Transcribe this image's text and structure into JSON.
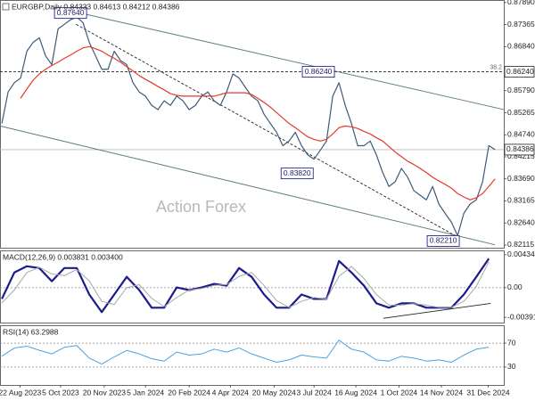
{
  "chart_data": [
    {
      "type": "line",
      "title": "EURGBP,Daily  0.84333 0.84613 0.84212 0.84386",
      "watermark": "Action Forex",
      "xlim": [
        -0.3,
        80.4
      ],
      "ylim": [
        0.8205,
        0.8795
      ],
      "yticks": [
        {
          "value": 0.8789,
          "label": "0.87890"
        },
        {
          "value": 0.87365,
          "label": "0.87365"
        },
        {
          "value": 0.8684,
          "label": "0.86840"
        },
        {
          "value": 0.8579,
          "label": "0.85790"
        },
        {
          "value": 0.85265,
          "label": "0.85265"
        },
        {
          "value": 0.8474,
          "label": "0.84740"
        },
        {
          "value": 0.84215,
          "label": "0.84215"
        },
        {
          "value": 0.8369,
          "label": "0.83690"
        },
        {
          "value": 0.83165,
          "label": "0.83165"
        },
        {
          "value": 0.8264,
          "label": "0.82640"
        },
        {
          "value": 0.82115,
          "label": "0.82115"
        }
      ],
      "series": [
        {
          "color": "#3d5a78",
          "values": [
            0.8501,
            0.8576,
            0.8598,
            0.8609,
            0.8673,
            0.8694,
            0.8705,
            0.8662,
            0.8641,
            0.8726,
            0.8737,
            0.8748,
            0.8754,
            0.8741,
            0.8694,
            0.8662,
            0.863,
            0.863,
            0.8673,
            0.8651,
            0.8641,
            0.8598,
            0.8576,
            0.8566,
            0.8544,
            0.8534,
            0.8555,
            0.8544,
            0.8566,
            0.8555,
            0.8534,
            0.8544,
            0.8566,
            0.8576,
            0.8555,
            0.8544,
            0.8576,
            0.8619,
            0.8609,
            0.8587,
            0.8566,
            0.8555,
            0.8523,
            0.8501,
            0.848,
            0.8448,
            0.8459,
            0.848,
            0.8448,
            0.8426,
            0.8416,
            0.8437,
            0.8459,
            0.8566,
            0.8598,
            0.8544,
            0.8501,
            0.8448,
            0.8448,
            0.8459,
            0.8426,
            0.8384,
            0.8351,
            0.8362,
            0.8394,
            0.8373,
            0.8341,
            0.833,
            0.8319,
            0.8351,
            0.8309,
            0.8287,
            0.8266,
            0.8234,
            0.8287,
            0.8309,
            0.8319,
            0.8362,
            0.8448,
            0.84386
          ]
        },
        {
          "color": "#e23a2e",
          "values": [
            null,
            null,
            null,
            0.8561,
            0.8583,
            0.8604,
            0.8619,
            0.863,
            0.8639,
            0.8647,
            0.8656,
            0.8664,
            0.8673,
            0.8681,
            0.8684,
            0.8679,
            0.8673,
            0.8664,
            0.8656,
            0.8647,
            0.8636,
            0.8626,
            0.8615,
            0.8606,
            0.8598,
            0.8589,
            0.8581,
            0.8572,
            0.8568,
            0.8566,
            0.8566,
            0.8566,
            0.8566,
            0.8566,
            0.8566,
            0.857,
            0.8574,
            0.8574,
            0.8574,
            0.8574,
            0.857,
            0.8561,
            0.8551,
            0.854,
            0.8527,
            0.8514,
            0.8501,
            0.8491,
            0.848,
            0.8469,
            0.8463,
            0.8459,
            0.8463,
            0.8476,
            0.8491,
            0.8495,
            0.8493,
            0.8489,
            0.8482,
            0.8476,
            0.8467,
            0.8459,
            0.8446,
            0.8433,
            0.8422,
            0.8411,
            0.8403,
            0.8394,
            0.8384,
            0.8373,
            0.8364,
            0.8356,
            0.8347,
            0.8334,
            0.8326,
            0.8319,
            0.8324,
            0.8334,
            0.8351,
            0.8369
          ]
        }
      ],
      "lines": [
        {
          "x": [
            11.1,
            80.4
          ],
          "values": [
            0.8769,
            0.8534
          ],
          "color": "#5a7a7a",
          "dash": false
        },
        {
          "x": [
            -0.3,
            79
          ],
          "values": [
            0.8495,
            0.8212
          ],
          "color": "#5a7a7a",
          "dash": false
        },
        {
          "x": [
            11.9,
            72.6
          ],
          "values": [
            0.8737,
            0.8234
          ],
          "color": "#222222",
          "dash": true
        }
      ],
      "levels": [
        {
          "value": 0.8624,
          "label": "0.86240",
          "note": "38.2",
          "dash": true
        },
        {
          "value": 0.84386,
          "label": "0.84386",
          "dash": false
        }
      ],
      "annotations": [
        {
          "label": "0.87640",
          "value": 0.8764,
          "x": 11
        },
        {
          "label": "0.86240",
          "value": 0.8624,
          "x": 50.7
        },
        {
          "label": "0.83820",
          "value": 0.8382,
          "x": 47.3
        },
        {
          "label": "0.82210",
          "value": 0.8221,
          "x": 70.7
        }
      ]
    },
    {
      "type": "line",
      "title": "MACD(12,26,9) 0.003831 0.003400",
      "ylim": [
        -0.0046,
        0.00492
      ],
      "yticks": [
        0.004341,
        {
          "value": 0,
          "label": "0.00"
        },
        -0.003916
      ],
      "hlines": [
        0
      ],
      "x": [
        0,
        2,
        4,
        6,
        8,
        10,
        12,
        14,
        16,
        18,
        20,
        22,
        24,
        26,
        28,
        30,
        32,
        34,
        36,
        38,
        40,
        42,
        44,
        46,
        48,
        50,
        52,
        54,
        56,
        58,
        60,
        62,
        64,
        66,
        68,
        70,
        72,
        74,
        76,
        78
      ],
      "series": [
        {
          "color": "#1c1c8c",
          "width": 2.2,
          "values": [
            -0.00148,
            0.00201,
            0.00283,
            0.00259,
            0.00085,
            0.00259,
            0.00259,
            -0.0009,
            -0.00322,
            -0.0009,
            0.00143,
            -0.00031,
            -0.00264,
            -0.00264,
            3e-05,
            -0.00031,
            3e-05,
            0.0005,
            0.00027,
            0.00259,
            0.00143,
            -0.0009,
            -0.00264,
            -0.00264,
            -0.0009,
            -0.00148,
            -0.00148,
            0.00352,
            0.00201,
            0.00027,
            -0.00206,
            -0.00264,
            -0.00206,
            -0.00206,
            -0.00264,
            -0.00264,
            -0.00264,
            -0.0009,
            0.00143,
            0.003831
          ]
        },
        {
          "color": "#a8a8a8",
          "width": 1,
          "values": [
            -0.002,
            -0.0003,
            0.002,
            0.0027,
            0.0018,
            0.0016,
            0.0024,
            0.0009,
            -0.0018,
            -0.0022,
            0,
            0.0004,
            -0.0014,
            -0.0025,
            -0.0013,
            -0.0003,
            -0.0001,
            0.0003,
            0.0004,
            0.0015,
            0.002,
            0.0003,
            -0.0017,
            -0.0026,
            -0.0018,
            -0.0013,
            -0.0015,
            0.0015,
            0.0028,
            0.0012,
            -0.0009,
            -0.0023,
            -0.0023,
            -0.0021,
            -0.0023,
            -0.0026,
            -0.0026,
            -0.0018,
            0.0002,
            0.0034
          ]
        }
      ],
      "lines": [
        {
          "x": [
            61.1,
            78.3
          ],
          "values": [
            -0.00404,
            -0.00206
          ],
          "color": "#222222",
          "dash": false
        }
      ]
    },
    {
      "type": "line",
      "title": "RSI(14) 63.2988",
      "ylim": [
        0,
        100
      ],
      "yticks": [
        70,
        30
      ],
      "hlines": [
        70,
        30
      ],
      "x": [
        0,
        2,
        4,
        6,
        8,
        10,
        12,
        14,
        16,
        18,
        20,
        22,
        24,
        26,
        28,
        30,
        32,
        34,
        36,
        38,
        40,
        42,
        44,
        46,
        48,
        50,
        52,
        54,
        56,
        58,
        60,
        62,
        64,
        66,
        68,
        70,
        72,
        74,
        76,
        78
      ],
      "xticks": [
        {
          "value": 2.9,
          "label": "22 Aug 2023"
        },
        {
          "value": 9.4,
          "label": "5 Oct 2023"
        },
        {
          "value": 16.4,
          "label": "20 Nov 2023"
        },
        {
          "value": 23,
          "label": "5 Jan 2024"
        },
        {
          "value": 30,
          "label": "20 Feb 2024"
        },
        {
          "value": 36.6,
          "label": "4 Apr 2024"
        },
        {
          "value": 43.6,
          "label": "20 May 2024"
        },
        {
          "value": 50,
          "label": "3 Jul 2024"
        },
        {
          "value": 56.7,
          "label": "16 Aug 2024"
        },
        {
          "value": 63.6,
          "label": "1 Oct 2024"
        },
        {
          "value": 70.4,
          "label": "14 Nov 2024"
        },
        {
          "value": 77.9,
          "label": "31 Dec 2024"
        }
      ],
      "series": [
        {
          "color": "#4aa3e0",
          "width": 1,
          "values": [
            48,
            62,
            65,
            58,
            52,
            63,
            66,
            45,
            35,
            47,
            58,
            52,
            44,
            40,
            55,
            50,
            52,
            60,
            55,
            62,
            52,
            45,
            38,
            42,
            50,
            47,
            45,
            75,
            60,
            55,
            42,
            40,
            48,
            45,
            40,
            42,
            38,
            50,
            60,
            63.2988
          ]
        }
      ]
    }
  ]
}
